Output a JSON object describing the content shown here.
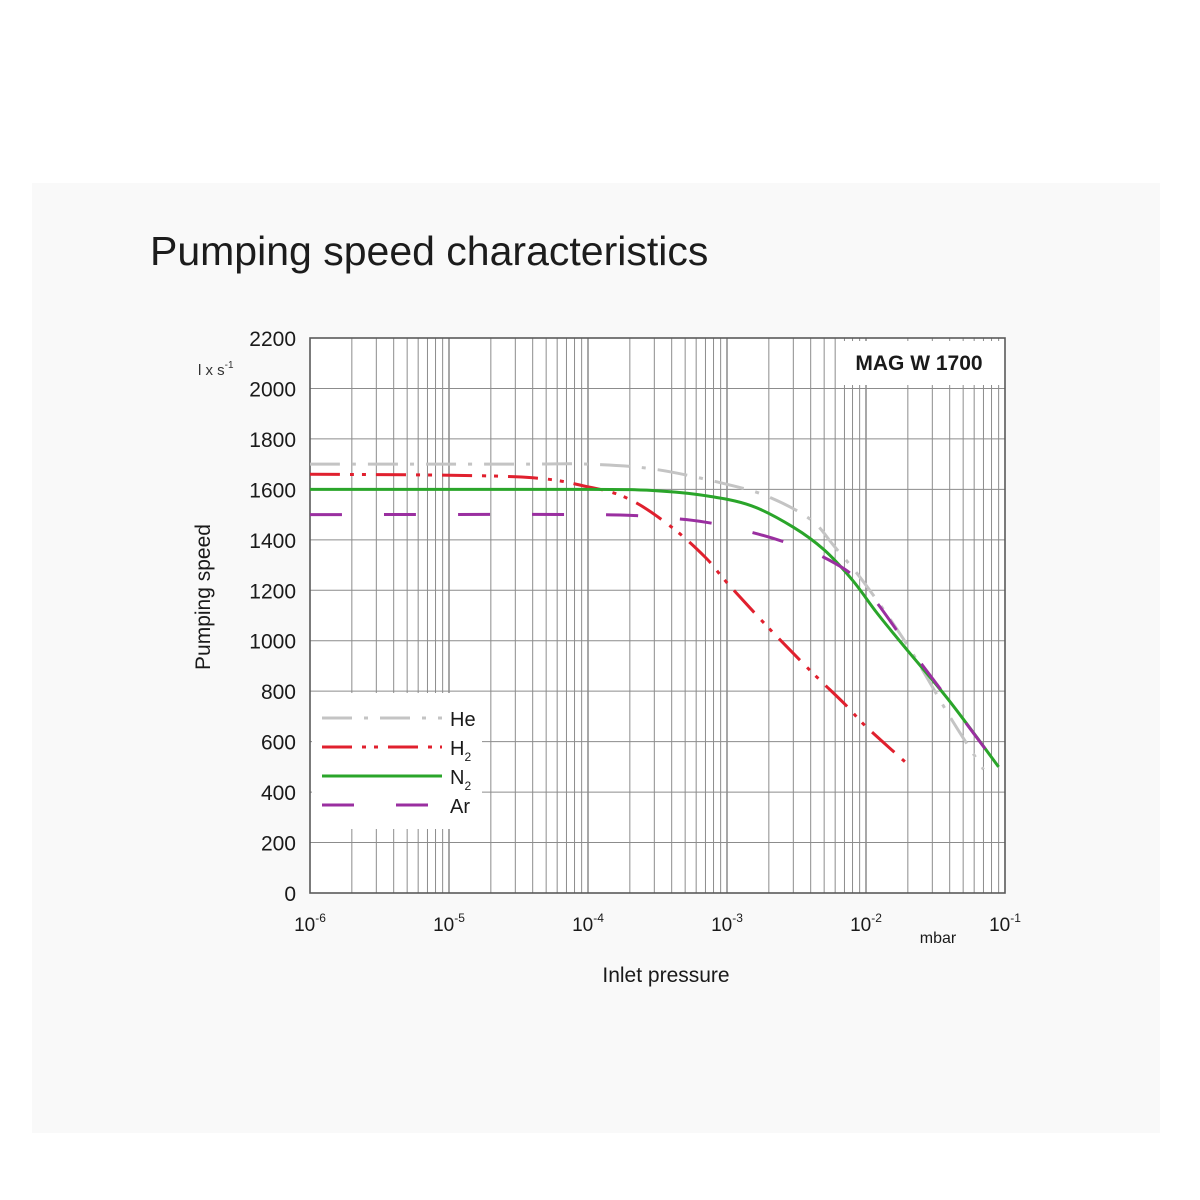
{
  "page_title": "Pumping speed characteristics",
  "chart_data": {
    "type": "line",
    "title": "Pumping speed characteristics",
    "model_label": "MAG W 1700",
    "ylabel": "Pumping speed",
    "y_unit": "l x s",
    "y_unit_exp": "-1",
    "xlabel": "Inlet pressure",
    "x_unit": "mbar",
    "x_scale": "log",
    "xlim": [
      1e-06,
      0.1
    ],
    "ylim": [
      0,
      2200
    ],
    "grid": true,
    "legend_position": "bottom-left",
    "y_ticks": [
      "0",
      "200",
      "400",
      "600",
      "800",
      "1000",
      "1200",
      "1400",
      "1600",
      "1800",
      "2000",
      "2200"
    ],
    "x_ticks": [
      {
        "base": "10",
        "exp": "-6"
      },
      {
        "base": "10",
        "exp": "-5"
      },
      {
        "base": "10",
        "exp": "-4"
      },
      {
        "base": "10",
        "exp": "-3"
      },
      {
        "base": "10",
        "exp": "-2"
      },
      {
        "base": "10",
        "exp": "-1"
      }
    ],
    "series": [
      {
        "name": "He",
        "name_sub": "",
        "color": "#c4c4c4",
        "dash": "dashdot",
        "x": [
          1e-06,
          3e-05,
          0.0001,
          0.0003,
          0.001,
          0.002,
          0.004,
          0.006,
          0.01,
          0.02,
          0.04,
          0.07
        ],
        "y": [
          1700,
          1700,
          1700,
          1680,
          1620,
          1570,
          1480,
          1370,
          1220,
          980,
          700,
          490
        ]
      },
      {
        "name": "H",
        "name_sub": "2",
        "color": "#e0202e",
        "dash": "dashdotdot",
        "x": [
          1e-06,
          3e-05,
          0.0001,
          0.0002,
          0.0004,
          0.0007,
          0.001,
          0.002,
          0.004,
          0.007,
          0.01,
          0.02
        ],
        "y": [
          1660,
          1650,
          1610,
          1560,
          1450,
          1330,
          1230,
          1050,
          880,
          750,
          660,
          510
        ]
      },
      {
        "name": "N",
        "name_sub": "2",
        "color": "#2aa52a",
        "dash": "solid",
        "x": [
          1e-06,
          0.0001,
          0.0003,
          0.0007,
          0.0015,
          0.003,
          0.005,
          0.008,
          0.012,
          0.02,
          0.04,
          0.09
        ],
        "y": [
          1600,
          1600,
          1595,
          1575,
          1535,
          1450,
          1360,
          1240,
          1110,
          960,
          760,
          500
        ]
      },
      {
        "name": "Ar",
        "name_sub": "",
        "color": "#9a2fa0",
        "dash": "longdash",
        "x": [
          1e-06,
          0.0001,
          0.0003,
          0.0007,
          0.0015,
          0.003,
          0.005,
          0.008,
          0.012,
          0.02,
          0.04,
          0.09
        ],
        "y": [
          1500,
          1500,
          1490,
          1470,
          1430,
          1380,
          1330,
          1260,
          1150,
          980,
          760,
          500
        ]
      }
    ]
  }
}
